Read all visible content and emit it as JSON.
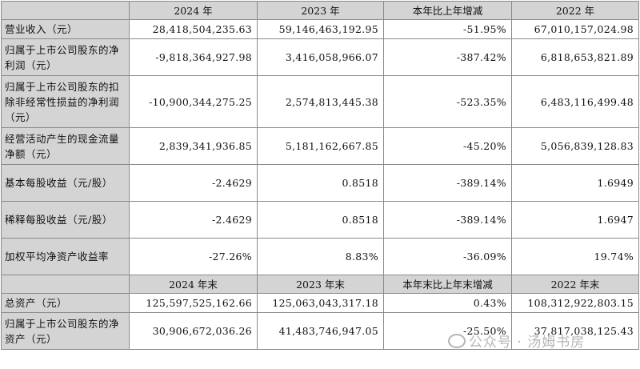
{
  "header1": [
    "",
    "2024 年",
    "2023 年",
    "本年比上年增减",
    "2022 年"
  ],
  "rows1": [
    {
      "label": "营业收入（元）",
      "v": [
        "28,418,504,235.63",
        "59,146,463,192.95",
        "-51.95%",
        "67,010,157,024.98"
      ],
      "h": "h1"
    },
    {
      "label": "归属于上市公司股东的净利润（元）",
      "v": [
        "-9,818,364,927.98",
        "3,416,058,966.07",
        "-387.42%",
        "6,818,653,821.89"
      ],
      "h": "h2"
    },
    {
      "label": "归属于上市公司股东的扣除非经常性损益的净利润（元）",
      "v": [
        "-10,900,344,275.25",
        "2,574,813,445.38",
        "-523.35%",
        "6,483,116,499.48"
      ],
      "h": "h3"
    },
    {
      "label": "经营活动产生的现金流量净额（元）",
      "v": [
        "2,839,341,936.85",
        "5,181,162,667.85",
        "-45.20%",
        "5,056,839,128.83"
      ],
      "h": "h2"
    },
    {
      "label": "基本每股收益（元/股）",
      "v": [
        "-2.4629",
        "0.8518",
        "-389.14%",
        "1.6949"
      ],
      "h": "h2"
    },
    {
      "label": "稀释每股收益（元/股）",
      "v": [
        "-2.4629",
        "0.8518",
        "-389.14%",
        "1.6947"
      ],
      "h": "h2"
    },
    {
      "label": "加权平均净资产收益率",
      "v": [
        "-27.26%",
        "8.83%",
        "-36.09%",
        "19.74%"
      ],
      "h": "h2"
    }
  ],
  "header2": [
    "",
    "2024 年末",
    "2023 年末",
    "本年末比上年末增减",
    "2022 年末"
  ],
  "rows2": [
    {
      "label": "总资产（元）",
      "v": [
        "125,597,525,162.66",
        "125,063,043,317.18",
        "0.43%",
        "108,312,922,803.15"
      ],
      "h": "h1"
    },
    {
      "label": "归属于上市公司股东的净资产（元）",
      "v": [
        "30,906,672,036.26",
        "41,483,746,947.05",
        "-25.50%",
        "37,817,038,125.43"
      ],
      "h": "h2"
    }
  ],
  "watermark": {
    "text": "公众号 · 汤姆书房",
    "icon": "wechat-icon"
  }
}
